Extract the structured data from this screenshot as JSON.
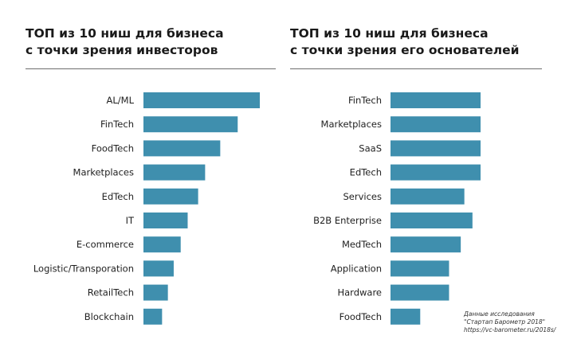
{
  "chart_data": [
    {
      "type": "bar",
      "orientation": "horizontal",
      "title": [
        "ТОП из 10 ниш для бизнеса",
        "с точки зрения инвесторов"
      ],
      "categories": [
        "AL/ML",
        "FinTech",
        "FoodTech",
        "Marketplaces",
        "EdTech",
        "IT",
        "E-commerce",
        "Logistic/Transporation",
        "RetailTech",
        "Blockchain"
      ],
      "values": [
        100,
        81,
        66,
        53,
        47,
        38,
        32,
        26,
        21,
        16
      ],
      "xlim": [
        0,
        100
      ],
      "grid": false,
      "color": "#3f8fae"
    },
    {
      "type": "bar",
      "orientation": "horizontal",
      "title": [
        "ТОП из 10 ниш для бизнеса",
        "с точки зрения его основателей"
      ],
      "categories": [
        "FinTech",
        "Marketplaces",
        "SaaS",
        "EdTech",
        "Services",
        "B2B Enterprise",
        "MedTech",
        "Application",
        "Hardware",
        "FoodTech"
      ],
      "values": [
        100,
        100,
        100,
        100,
        82,
        91,
        78,
        65,
        65,
        33
      ],
      "xlim": [
        0,
        100
      ],
      "grid": false,
      "color": "#3f8fae"
    }
  ],
  "source": [
    "Данные исследования",
    "\"Стартап Барометр 2018\"",
    "https://vc-barometer.ru/2018s/"
  ]
}
